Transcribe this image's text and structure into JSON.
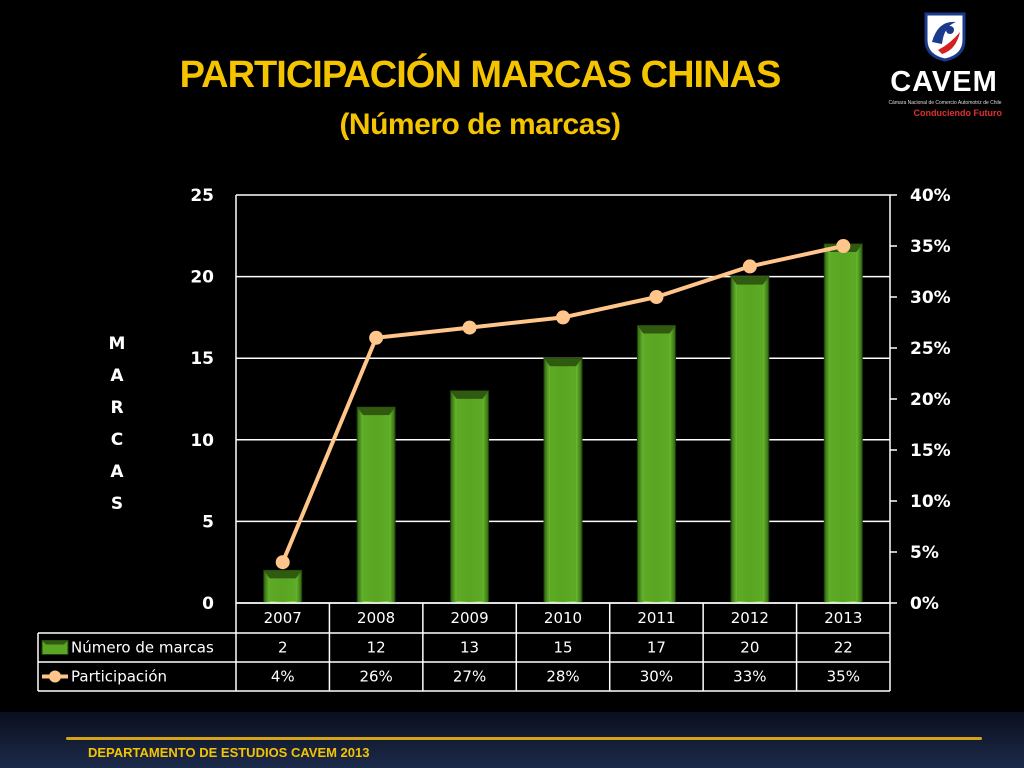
{
  "title": "PARTICIPACIÓN MARCAS CHINAS",
  "subtitle": "(Número de marcas)",
  "logo": {
    "name": "CAVEM",
    "line": "Cámara Nacional de Comercio Automotriz de Chile",
    "tagline": "Conduciendo Futuro"
  },
  "footer": "DEPARTAMENTO DE ESTUDIOS CAVEM 2013",
  "colors": {
    "bar": "#5aa524",
    "bar_top": "#2f5a10",
    "line": "#ffc58a",
    "title": "#f5c400",
    "grid": "#ffffff"
  },
  "chart_data": {
    "type": "bar",
    "categories": [
      "2007",
      "2008",
      "2009",
      "2010",
      "2011",
      "2012",
      "2013"
    ],
    "ylabel": "MARCAS",
    "ylim": [
      0,
      25
    ],
    "yticks": [
      "0",
      "5",
      "10",
      "15",
      "20",
      "25"
    ],
    "y2lim": [
      0,
      40
    ],
    "y2ticks": [
      "0%",
      "5%",
      "10%",
      "15%",
      "20%",
      "25%",
      "30%",
      "35%",
      "40%"
    ],
    "grid": true,
    "legend": "data-table",
    "series": [
      {
        "name": "Número de marcas",
        "type": "bar",
        "values": [
          2,
          12,
          13,
          15,
          17,
          20,
          22
        ],
        "labels": [
          "2",
          "12",
          "13",
          "15",
          "17",
          "20",
          "22"
        ]
      },
      {
        "name": "Participación",
        "type": "line",
        "axis": "right",
        "values": [
          4,
          26,
          27,
          28,
          30,
          33,
          35
        ],
        "labels": [
          "4%",
          "26%",
          "27%",
          "28%",
          "30%",
          "33%",
          "35%"
        ]
      }
    ]
  }
}
